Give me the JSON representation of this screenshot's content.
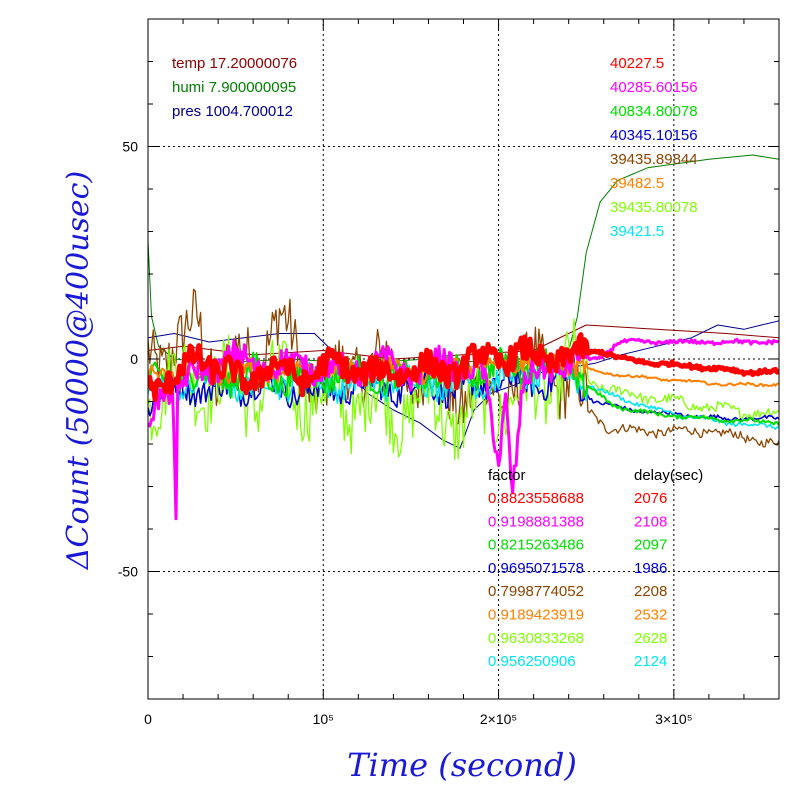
{
  "chart_data": {
    "type": "line",
    "title": "",
    "xlabel": "Time (second)",
    "ylabel": "ΔCount (50000@400usec)",
    "xlim": [
      0,
      360000
    ],
    "ylim": [
      -80,
      80
    ],
    "x_ticks": [
      {
        "value": 0,
        "label": "0"
      },
      {
        "value": 100000,
        "label": "10⁵"
      },
      {
        "value": 200000,
        "label": "2×10⁵"
      },
      {
        "value": 300000,
        "label": "3×10⁵"
      }
    ],
    "y_ticks": [
      {
        "value": 50,
        "label": "50"
      },
      {
        "value": 0,
        "label": "0"
      },
      {
        "value": -50,
        "label": "-50"
      }
    ],
    "grid": "dotted at major ticks",
    "env_legend": [
      {
        "text": "temp 17.20000076",
        "color": "#8b0000"
      },
      {
        "text": "humi 7.900000095",
        "color": "#008000"
      },
      {
        "text": "pres 1004.700012",
        "color": "#00008b"
      }
    ],
    "baseline_legend": [
      {
        "text": "40227.5",
        "color": "#ff0000"
      },
      {
        "text": "40285.60156",
        "color": "#ff00ff"
      },
      {
        "text": "40834.80078",
        "color": "#00dd00"
      },
      {
        "text": "40345.10156",
        "color": "#0000cc"
      },
      {
        "text": "39435.89844",
        "color": "#8b4500"
      },
      {
        "text": "39482.5",
        "color": "#ff8000"
      },
      {
        "text": "39435.80078",
        "color": "#80ff00"
      },
      {
        "text": "39421.5",
        "color": "#00e5ee"
      }
    ],
    "factor_header": "factor",
    "delay_header": "delay(sec)",
    "factor_rows": [
      {
        "factor": "0.8823558688",
        "delay": "2076",
        "color": "#ff0000"
      },
      {
        "factor": "0.9198881388",
        "delay": "2108",
        "color": "#ff00ff"
      },
      {
        "factor": "0.8215263486",
        "delay": "2097",
        "color": "#00dd00"
      },
      {
        "factor": "0.9695071578",
        "delay": "1986",
        "color": "#0000cc"
      },
      {
        "factor": "0.7998774052",
        "delay": "2208",
        "color": "#8b4500"
      },
      {
        "factor": "0.9189423919",
        "delay": "2532",
        "color": "#ff8000"
      },
      {
        "factor": "0.9630833268",
        "delay": "2628",
        "color": "#80ff00"
      },
      {
        "factor": "0.956250906",
        "delay": "2124",
        "color": "#00e5ee"
      }
    ],
    "series": [
      {
        "color": "#008000",
        "width": 1,
        "points": [
          [
            0,
            28
          ],
          [
            2000,
            10
          ],
          [
            6000,
            3
          ],
          [
            15000,
            0
          ],
          [
            40000,
            -1
          ],
          [
            80000,
            0
          ],
          [
            120000,
            -1
          ],
          [
            160000,
            0
          ],
          [
            200000,
            -1
          ],
          [
            230000,
            0
          ],
          [
            240000,
            2
          ],
          [
            245000,
            10
          ],
          [
            250000,
            25
          ],
          [
            258000,
            37
          ],
          [
            268000,
            42
          ],
          [
            285000,
            45
          ],
          [
            320000,
            47
          ],
          [
            345000,
            48
          ],
          [
            360000,
            47
          ]
        ]
      },
      {
        "color": "#8b0000",
        "width": 1,
        "points": [
          [
            0,
            2
          ],
          [
            20000,
            3
          ],
          [
            60000,
            1
          ],
          [
            100000,
            2
          ],
          [
            140000,
            0
          ],
          [
            180000,
            1
          ],
          [
            220000,
            2
          ],
          [
            250000,
            8
          ],
          [
            290000,
            7
          ],
          [
            330000,
            6
          ],
          [
            360000,
            5
          ]
        ]
      },
      {
        "color": "#00008b",
        "width": 1,
        "points": [
          [
            0,
            5
          ],
          [
            15000,
            6
          ],
          [
            35000,
            4
          ],
          [
            55000,
            5
          ],
          [
            75000,
            6
          ],
          [
            95000,
            6
          ],
          [
            110000,
            0
          ],
          [
            125000,
            -8
          ],
          [
            140000,
            -12
          ],
          [
            155000,
            -15
          ],
          [
            168000,
            -19
          ],
          [
            178000,
            -21
          ],
          [
            186000,
            -12
          ],
          [
            196000,
            -8
          ],
          [
            210000,
            -6
          ],
          [
            225000,
            -3
          ],
          [
            240000,
            -2
          ],
          [
            255000,
            -1
          ],
          [
            270000,
            1
          ],
          [
            290000,
            3
          ],
          [
            310000,
            5
          ],
          [
            325000,
            8
          ],
          [
            340000,
            7
          ],
          [
            350000,
            8
          ],
          [
            360000,
            9
          ]
        ]
      },
      {
        "color": "#8b4500",
        "width": 1.3,
        "noise": 7,
        "points": [
          [
            0,
            2
          ],
          [
            20000,
            2
          ],
          [
            28000,
            10
          ],
          [
            40000,
            -5
          ],
          [
            60000,
            2
          ],
          [
            75000,
            8
          ],
          [
            100000,
            -8
          ],
          [
            120000,
            0
          ],
          [
            140000,
            -3
          ],
          [
            160000,
            -5
          ],
          [
            180000,
            -8
          ],
          [
            200000,
            -8
          ],
          [
            220000,
            -2
          ],
          [
            240000,
            -5
          ],
          [
            250000,
            -12
          ],
          [
            262000,
            -16
          ],
          [
            280000,
            -17
          ],
          [
            320000,
            -17
          ],
          [
            360000,
            -20
          ]
        ]
      },
      {
        "color": "#80ff00",
        "width": 1.3,
        "noise": 8,
        "points": [
          [
            0,
            -8
          ],
          [
            20000,
            -5
          ],
          [
            40000,
            -6
          ],
          [
            60000,
            -8
          ],
          [
            80000,
            -6
          ],
          [
            100000,
            -10
          ],
          [
            120000,
            -10
          ],
          [
            140000,
            -12
          ],
          [
            160000,
            -10
          ],
          [
            180000,
            -15
          ],
          [
            200000,
            -10
          ],
          [
            220000,
            -8
          ],
          [
            240000,
            -2
          ],
          [
            255000,
            -6
          ],
          [
            270000,
            -8
          ],
          [
            300000,
            -10
          ],
          [
            330000,
            -12
          ],
          [
            360000,
            -13
          ]
        ]
      },
      {
        "color": "#0000cc",
        "width": 1.6,
        "noise": 3,
        "points": [
          [
            0,
            -10
          ],
          [
            20000,
            -6
          ],
          [
            40000,
            -8
          ],
          [
            60000,
            -6
          ],
          [
            80000,
            -7
          ],
          [
            100000,
            -8
          ],
          [
            120000,
            -6
          ],
          [
            140000,
            -7
          ],
          [
            160000,
            -6
          ],
          [
            180000,
            -8
          ],
          [
            200000,
            -5
          ],
          [
            220000,
            -6
          ],
          [
            240000,
            -4
          ],
          [
            255000,
            -10
          ],
          [
            275000,
            -12
          ],
          [
            300000,
            -13
          ],
          [
            330000,
            -14
          ],
          [
            360000,
            -14
          ]
        ]
      },
      {
        "color": "#00e5ee",
        "width": 1.6,
        "noise": 3,
        "points": [
          [
            0,
            -8
          ],
          [
            30000,
            -5
          ],
          [
            60000,
            -6
          ],
          [
            90000,
            -5
          ],
          [
            120000,
            -6
          ],
          [
            150000,
            -5
          ],
          [
            180000,
            -6
          ],
          [
            210000,
            -4
          ],
          [
            240000,
            -3
          ],
          [
            255000,
            -7
          ],
          [
            275000,
            -10
          ],
          [
            300000,
            -13
          ],
          [
            330000,
            -15
          ],
          [
            360000,
            -16
          ]
        ]
      },
      {
        "color": "#00dd00",
        "width": 2,
        "noise": 3,
        "points": [
          [
            0,
            -6
          ],
          [
            20000,
            -4
          ],
          [
            40000,
            -5
          ],
          [
            60000,
            -3
          ],
          [
            80000,
            -5
          ],
          [
            100000,
            -4
          ],
          [
            120000,
            -3
          ],
          [
            140000,
            -5
          ],
          [
            160000,
            -4
          ],
          [
            180000,
            -3
          ],
          [
            200000,
            -2
          ],
          [
            220000,
            -1
          ],
          [
            240000,
            -2
          ],
          [
            250000,
            -6
          ],
          [
            265000,
            -11
          ],
          [
            290000,
            -13
          ],
          [
            320000,
            -14
          ],
          [
            360000,
            -15
          ]
        ]
      },
      {
        "color": "#ff8000",
        "width": 2,
        "noise": 2,
        "points": [
          [
            0,
            -4
          ],
          [
            20000,
            -3
          ],
          [
            40000,
            -4
          ],
          [
            60000,
            -2
          ],
          [
            80000,
            -3
          ],
          [
            100000,
            -2
          ],
          [
            120000,
            -3
          ],
          [
            140000,
            -2
          ],
          [
            160000,
            -3
          ],
          [
            180000,
            -1
          ],
          [
            200000,
            -1
          ],
          [
            220000,
            0
          ],
          [
            240000,
            -1
          ],
          [
            255000,
            -3
          ],
          [
            275000,
            -4
          ],
          [
            300000,
            -5
          ],
          [
            330000,
            -6
          ],
          [
            360000,
            -6
          ]
        ]
      },
      {
        "color": "#ff00ff",
        "width": 3,
        "noise": 3,
        "points": [
          [
            0,
            -15
          ],
          [
            6000,
            -8
          ],
          [
            14000,
            -6
          ],
          [
            16000,
            -40
          ],
          [
            17000,
            -8
          ],
          [
            30000,
            -2
          ],
          [
            50000,
            0
          ],
          [
            70000,
            -2
          ],
          [
            90000,
            -1
          ],
          [
            110000,
            -3
          ],
          [
            130000,
            -1
          ],
          [
            150000,
            -3
          ],
          [
            170000,
            -1
          ],
          [
            190000,
            -2
          ],
          [
            196000,
            -15
          ],
          [
            200000,
            -25
          ],
          [
            204000,
            -8
          ],
          [
            208000,
            -30
          ],
          [
            214000,
            -6
          ],
          [
            230000,
            -2
          ],
          [
            245000,
            0
          ],
          [
            258000,
            0
          ],
          [
            268000,
            4
          ],
          [
            300000,
            4
          ],
          [
            330000,
            4
          ],
          [
            360000,
            4
          ]
        ]
      },
      {
        "color": "#ff0000",
        "width": 5,
        "noise": 3,
        "points": [
          [
            0,
            -5
          ],
          [
            15000,
            -6
          ],
          [
            28000,
            2
          ],
          [
            40000,
            -3
          ],
          [
            55000,
            -5
          ],
          [
            70000,
            -2
          ],
          [
            90000,
            -4
          ],
          [
            110000,
            -1
          ],
          [
            130000,
            -4
          ],
          [
            150000,
            -2
          ],
          [
            170000,
            -3
          ],
          [
            190000,
            0
          ],
          [
            210000,
            1
          ],
          [
            230000,
            0
          ],
          [
            245000,
            1
          ],
          [
            258000,
            2
          ],
          [
            270000,
            0
          ],
          [
            290000,
            -1
          ],
          [
            320000,
            -2
          ],
          [
            340000,
            -3
          ],
          [
            360000,
            -3
          ]
        ]
      }
    ]
  }
}
